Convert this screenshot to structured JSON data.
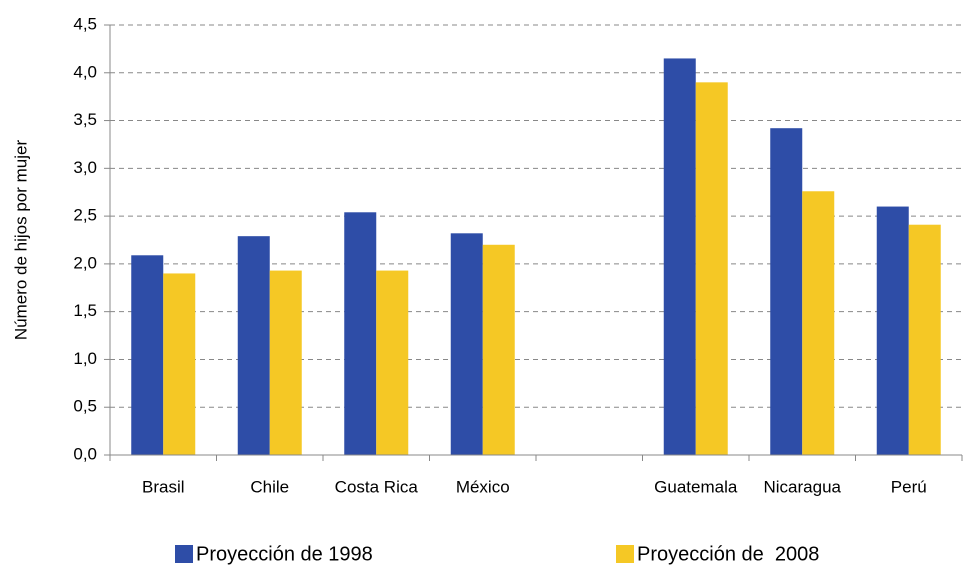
{
  "chart_data": {
    "type": "bar",
    "y_label": "Número de hijos por mujer",
    "categories": [
      "Brasil",
      "Chile",
      "Costa Rica",
      "México",
      null,
      "Guatemala",
      "Nicaragua",
      "Perú"
    ],
    "series": [
      {
        "name": "Proyección de 1998",
        "color": "#2E4DA7",
        "values": [
          2.09,
          2.29,
          2.54,
          2.32,
          null,
          4.15,
          3.42,
          2.6
        ]
      },
      {
        "name": "Proyección de  2008",
        "color": "#F5C825",
        "values": [
          1.9,
          1.93,
          1.93,
          2.2,
          null,
          3.9,
          2.76,
          2.41
        ]
      }
    ],
    "ylim": [
      0,
      4.5
    ],
    "yticks": [
      {
        "value": 0,
        "label": "0,0"
      },
      {
        "value": 0.5,
        "label": "0,5"
      },
      {
        "value": 1,
        "label": "1,0"
      },
      {
        "value": 1.5,
        "label": "1,5"
      },
      {
        "value": 2,
        "label": "2,0"
      },
      {
        "value": 2.5,
        "label": "2,5"
      },
      {
        "value": 3,
        "label": "3,0"
      },
      {
        "value": 3.5,
        "label": "3,5"
      },
      {
        "value": 4,
        "label": "4,0"
      },
      {
        "value": 4.5,
        "label": "4,5"
      }
    ],
    "grid": true,
    "legend": "bottom"
  }
}
